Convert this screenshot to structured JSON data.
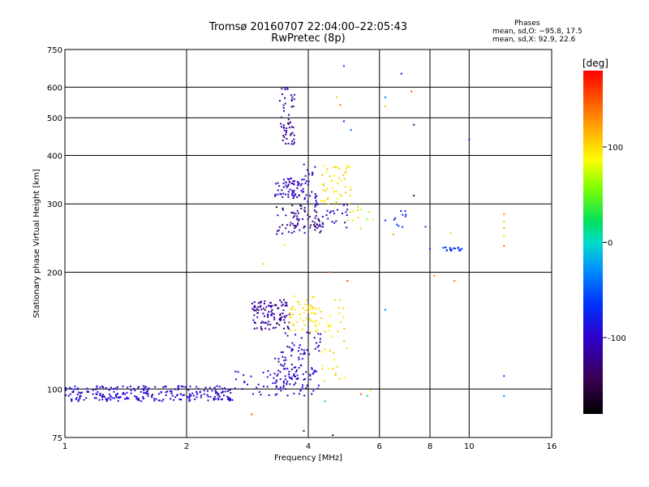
{
  "title_line1": "Tromsø 20160707 22:04:00–22:05:43",
  "title_line2": "RwPretec (8p)",
  "stats": {
    "header": "Phases",
    "line_o": "mean, sd,O: −95.8, 17.5",
    "line_x": "mean, sd,X:  92.9, 22.6"
  },
  "chart_data": {
    "type": "scatter",
    "xlabel": "Frequency [MHz]",
    "ylabel": "Stationary phase Virtual Height [km]",
    "x_scale": "log",
    "y_scale": "log",
    "xlim": [
      1,
      16
    ],
    "ylim": [
      75,
      750
    ],
    "x_ticks": [
      1,
      2,
      4,
      6,
      8,
      10,
      16
    ],
    "y_ticks": [
      75,
      100,
      200,
      300,
      400,
      500,
      600,
      750
    ],
    "x_gridlines": [
      2,
      4,
      6,
      8,
      10
    ],
    "y_gridlines": [
      100,
      200,
      300,
      400,
      500,
      600
    ],
    "grid": true,
    "colorbar": {
      "label": "[deg]",
      "min": -180,
      "max": 180,
      "ticks": [
        100,
        0,
        -100
      ],
      "tick_labels": [
        "100",
        "0",
        "-100"
      ]
    },
    "clusters": [
      {
        "x": [
          1.0,
          2.6
        ],
        "y": [
          93,
          102
        ],
        "n": 260,
        "phase": [
          -110,
          -80
        ]
      },
      {
        "x": [
          2.6,
          4.3
        ],
        "y": [
          96,
          112
        ],
        "n": 60,
        "phase": [
          -110,
          -80
        ]
      },
      {
        "x": [
          3.3,
          4.1
        ],
        "y": [
          100,
          125
        ],
        "n": 70,
        "phase": [
          -115,
          -85
        ]
      },
      {
        "x": [
          3.5,
          4.3
        ],
        "y": [
          125,
          140
        ],
        "n": 30,
        "phase": [
          -110,
          -85
        ]
      },
      {
        "x": [
          2.9,
          3.6
        ],
        "y": [
          142,
          170
        ],
        "n": 110,
        "phase": [
          -135,
          -95
        ]
      },
      {
        "x": [
          3.6,
          4.3
        ],
        "y": [
          140,
          165
        ],
        "n": 45,
        "phase": [
          90,
          110
        ]
      },
      {
        "x": [
          3.6,
          4.2
        ],
        "y": [
          160,
          180
        ],
        "n": 12,
        "phase": [
          90,
          110
        ]
      },
      {
        "x": [
          4.3,
          5.0
        ],
        "y": [
          105,
          170
        ],
        "n": 35,
        "phase": [
          85,
          110
        ]
      },
      {
        "x": [
          3.3,
          3.9
        ],
        "y": [
          310,
          350
        ],
        "n": 65,
        "phase": [
          -120,
          -85
        ]
      },
      {
        "x": [
          3.3,
          4.3
        ],
        "y": [
          250,
          300
        ],
        "n": 75,
        "phase": [
          -150,
          -90
        ]
      },
      {
        "x": [
          3.9,
          4.2
        ],
        "y": [
          300,
          380
        ],
        "n": 25,
        "phase": [
          -110,
          -85
        ]
      },
      {
        "x": [
          4.3,
          5.1
        ],
        "y": [
          300,
          380
        ],
        "n": 50,
        "phase": [
          85,
          110
        ]
      },
      {
        "x": [
          4.1,
          5.0
        ],
        "y": [
          260,
          300
        ],
        "n": 30,
        "phase": [
          -115,
          -90
        ]
      },
      {
        "x": [
          3.4,
          3.7
        ],
        "y": [
          420,
          600
        ],
        "n": 55,
        "phase": [
          -135,
          -100
        ]
      },
      {
        "x": [
          5.0,
          5.8
        ],
        "y": [
          255,
          300
        ],
        "n": 12,
        "phase": [
          60,
          110
        ]
      },
      {
        "x": [
          6.5,
          7.0
        ],
        "y": [
          260,
          290
        ],
        "n": 10,
        "phase": [
          -90,
          -60
        ]
      },
      {
        "x": [
          8.6,
          9.6
        ],
        "y": [
          227,
          232
        ],
        "n": 18,
        "phase": [
          -75,
          -55
        ]
      }
    ],
    "isolated_points": [
      {
        "x": 4.9,
        "y": 680,
        "phase": -60
      },
      {
        "x": 4.7,
        "y": 565,
        "phase": 110
      },
      {
        "x": 4.8,
        "y": 540,
        "phase": 140
      },
      {
        "x": 4.9,
        "y": 490,
        "phase": -100
      },
      {
        "x": 5.1,
        "y": 465,
        "phase": -50
      },
      {
        "x": 6.8,
        "y": 650,
        "phase": -100
      },
      {
        "x": 6.2,
        "y": 565,
        "phase": -40
      },
      {
        "x": 6.2,
        "y": 535,
        "phase": 110
      },
      {
        "x": 7.2,
        "y": 585,
        "phase": 150
      },
      {
        "x": 7.3,
        "y": 480,
        "phase": -130
      },
      {
        "x": 10.0,
        "y": 440,
        "phase": -70
      },
      {
        "x": 7.3,
        "y": 315,
        "phase": -150
      },
      {
        "x": 6.2,
        "y": 272,
        "phase": -70
      },
      {
        "x": 6.5,
        "y": 250,
        "phase": 120
      },
      {
        "x": 7.8,
        "y": 262,
        "phase": -70
      },
      {
        "x": 8.0,
        "y": 230,
        "phase": -60
      },
      {
        "x": 9.0,
        "y": 252,
        "phase": 110
      },
      {
        "x": 8.2,
        "y": 196,
        "phase": 140
      },
      {
        "x": 9.2,
        "y": 190,
        "phase": 140
      },
      {
        "x": 12.2,
        "y": 282,
        "phase": 130
      },
      {
        "x": 12.2,
        "y": 270,
        "phase": 110
      },
      {
        "x": 12.2,
        "y": 260,
        "phase": 120
      },
      {
        "x": 12.2,
        "y": 248,
        "phase": 100
      },
      {
        "x": 12.2,
        "y": 234,
        "phase": 150
      },
      {
        "x": 12.2,
        "y": 108,
        "phase": -60
      },
      {
        "x": 12.2,
        "y": 96,
        "phase": -30
      },
      {
        "x": 6.2,
        "y": 160,
        "phase": -30
      },
      {
        "x": 5.4,
        "y": 97,
        "phase": 150
      },
      {
        "x": 5.6,
        "y": 96,
        "phase": 20
      },
      {
        "x": 5.7,
        "y": 99,
        "phase": 80
      },
      {
        "x": 4.4,
        "y": 93,
        "phase": 20
      },
      {
        "x": 3.9,
        "y": 78,
        "phase": -130
      },
      {
        "x": 4.6,
        "y": 76,
        "phase": -150
      },
      {
        "x": 2.9,
        "y": 86,
        "phase": 150
      },
      {
        "x": 5.0,
        "y": 190,
        "phase": 150
      },
      {
        "x": 4.5,
        "y": 200,
        "phase": 150
      },
      {
        "x": 3.1,
        "y": 210,
        "phase": 110
      },
      {
        "x": 3.5,
        "y": 235,
        "phase": 80
      },
      {
        "x": 5.4,
        "y": 290,
        "phase": 70
      }
    ]
  }
}
